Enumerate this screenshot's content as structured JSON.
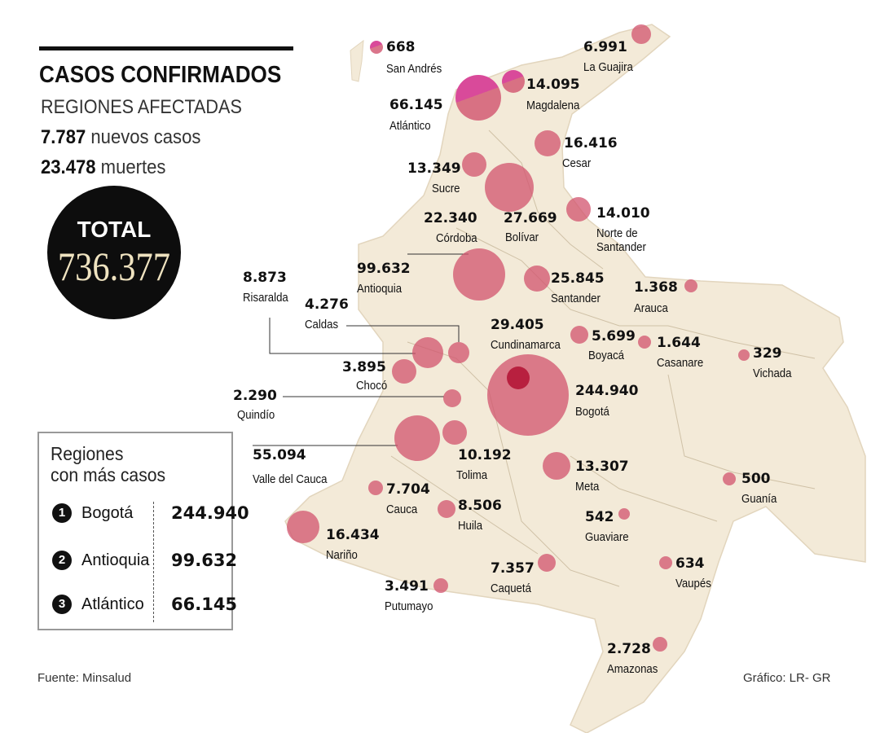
{
  "header": {
    "title": "CASOS CONFIRMADOS",
    "subtitle": "REGIONES AFECTADAS",
    "new_cases_value": "7.787",
    "new_cases_label": "nuevos casos",
    "deaths_value": "23.478",
    "deaths_label": "muertes"
  },
  "total": {
    "label": "TOTAL",
    "value": "736.377"
  },
  "legend": {
    "title_line1": "Regiones",
    "title_line2": "con más casos",
    "items": [
      {
        "rank": "1",
        "name": "Bogotá",
        "value": "244.940"
      },
      {
        "rank": "2",
        "name": "Antioquia",
        "value": "99.632"
      },
      {
        "rank": "3",
        "name": "Atlántico",
        "value": "66.145"
      }
    ]
  },
  "colors": {
    "bubble": "#d1536e",
    "bubble_highlight": "#d94a9a",
    "map_fill": "#f3ead8",
    "bogota_core": "#b8203f"
  },
  "regions": [
    {
      "name": "San Andrés",
      "value": "668"
    },
    {
      "name": "La Guajira",
      "value": "6.991"
    },
    {
      "name": "Magdalena",
      "value": "14.095"
    },
    {
      "name": "Atlántico",
      "value": "66.145"
    },
    {
      "name": "Cesar",
      "value": "16.416"
    },
    {
      "name": "Sucre",
      "value": "13.349"
    },
    {
      "name": "Bolívar",
      "value": "27.669"
    },
    {
      "name": "Córdoba",
      "value": "22.340"
    },
    {
      "name": "Norte de Santander",
      "value": "14.010"
    },
    {
      "name": "Antioquia",
      "value": "99.632"
    },
    {
      "name": "Santander",
      "value": "25.845"
    },
    {
      "name": "Arauca",
      "value": "1.368"
    },
    {
      "name": "Risaralda",
      "value": "8.873"
    },
    {
      "name": "Caldas",
      "value": "4.276"
    },
    {
      "name": "Cundinamarca",
      "value": "29.405"
    },
    {
      "name": "Boyacá",
      "value": "5.699"
    },
    {
      "name": "Casanare",
      "value": "1.644"
    },
    {
      "name": "Vichada",
      "value": "329"
    },
    {
      "name": "Chocó",
      "value": "3.895"
    },
    {
      "name": "Bogotá",
      "value": "244.940"
    },
    {
      "name": "Quindío",
      "value": "2.290"
    },
    {
      "name": "Valle del Cauca",
      "value": "55.094"
    },
    {
      "name": "Tolima",
      "value": "10.192"
    },
    {
      "name": "Meta",
      "value": "13.307"
    },
    {
      "name": "Guanía",
      "value": "500"
    },
    {
      "name": "Cauca",
      "value": "7.704"
    },
    {
      "name": "Huila",
      "value": "8.506"
    },
    {
      "name": "Guaviare",
      "value": "542"
    },
    {
      "name": "Nariño",
      "value": "16.434"
    },
    {
      "name": "Caquetá",
      "value": "7.357"
    },
    {
      "name": "Vaupés",
      "value": "634"
    },
    {
      "name": "Putumayo",
      "value": "3.491"
    },
    {
      "name": "Amazonas",
      "value": "2.728"
    }
  ],
  "footer": {
    "source": "Fuente: Minsalud",
    "credit": "Gráfico: LR- GR"
  }
}
